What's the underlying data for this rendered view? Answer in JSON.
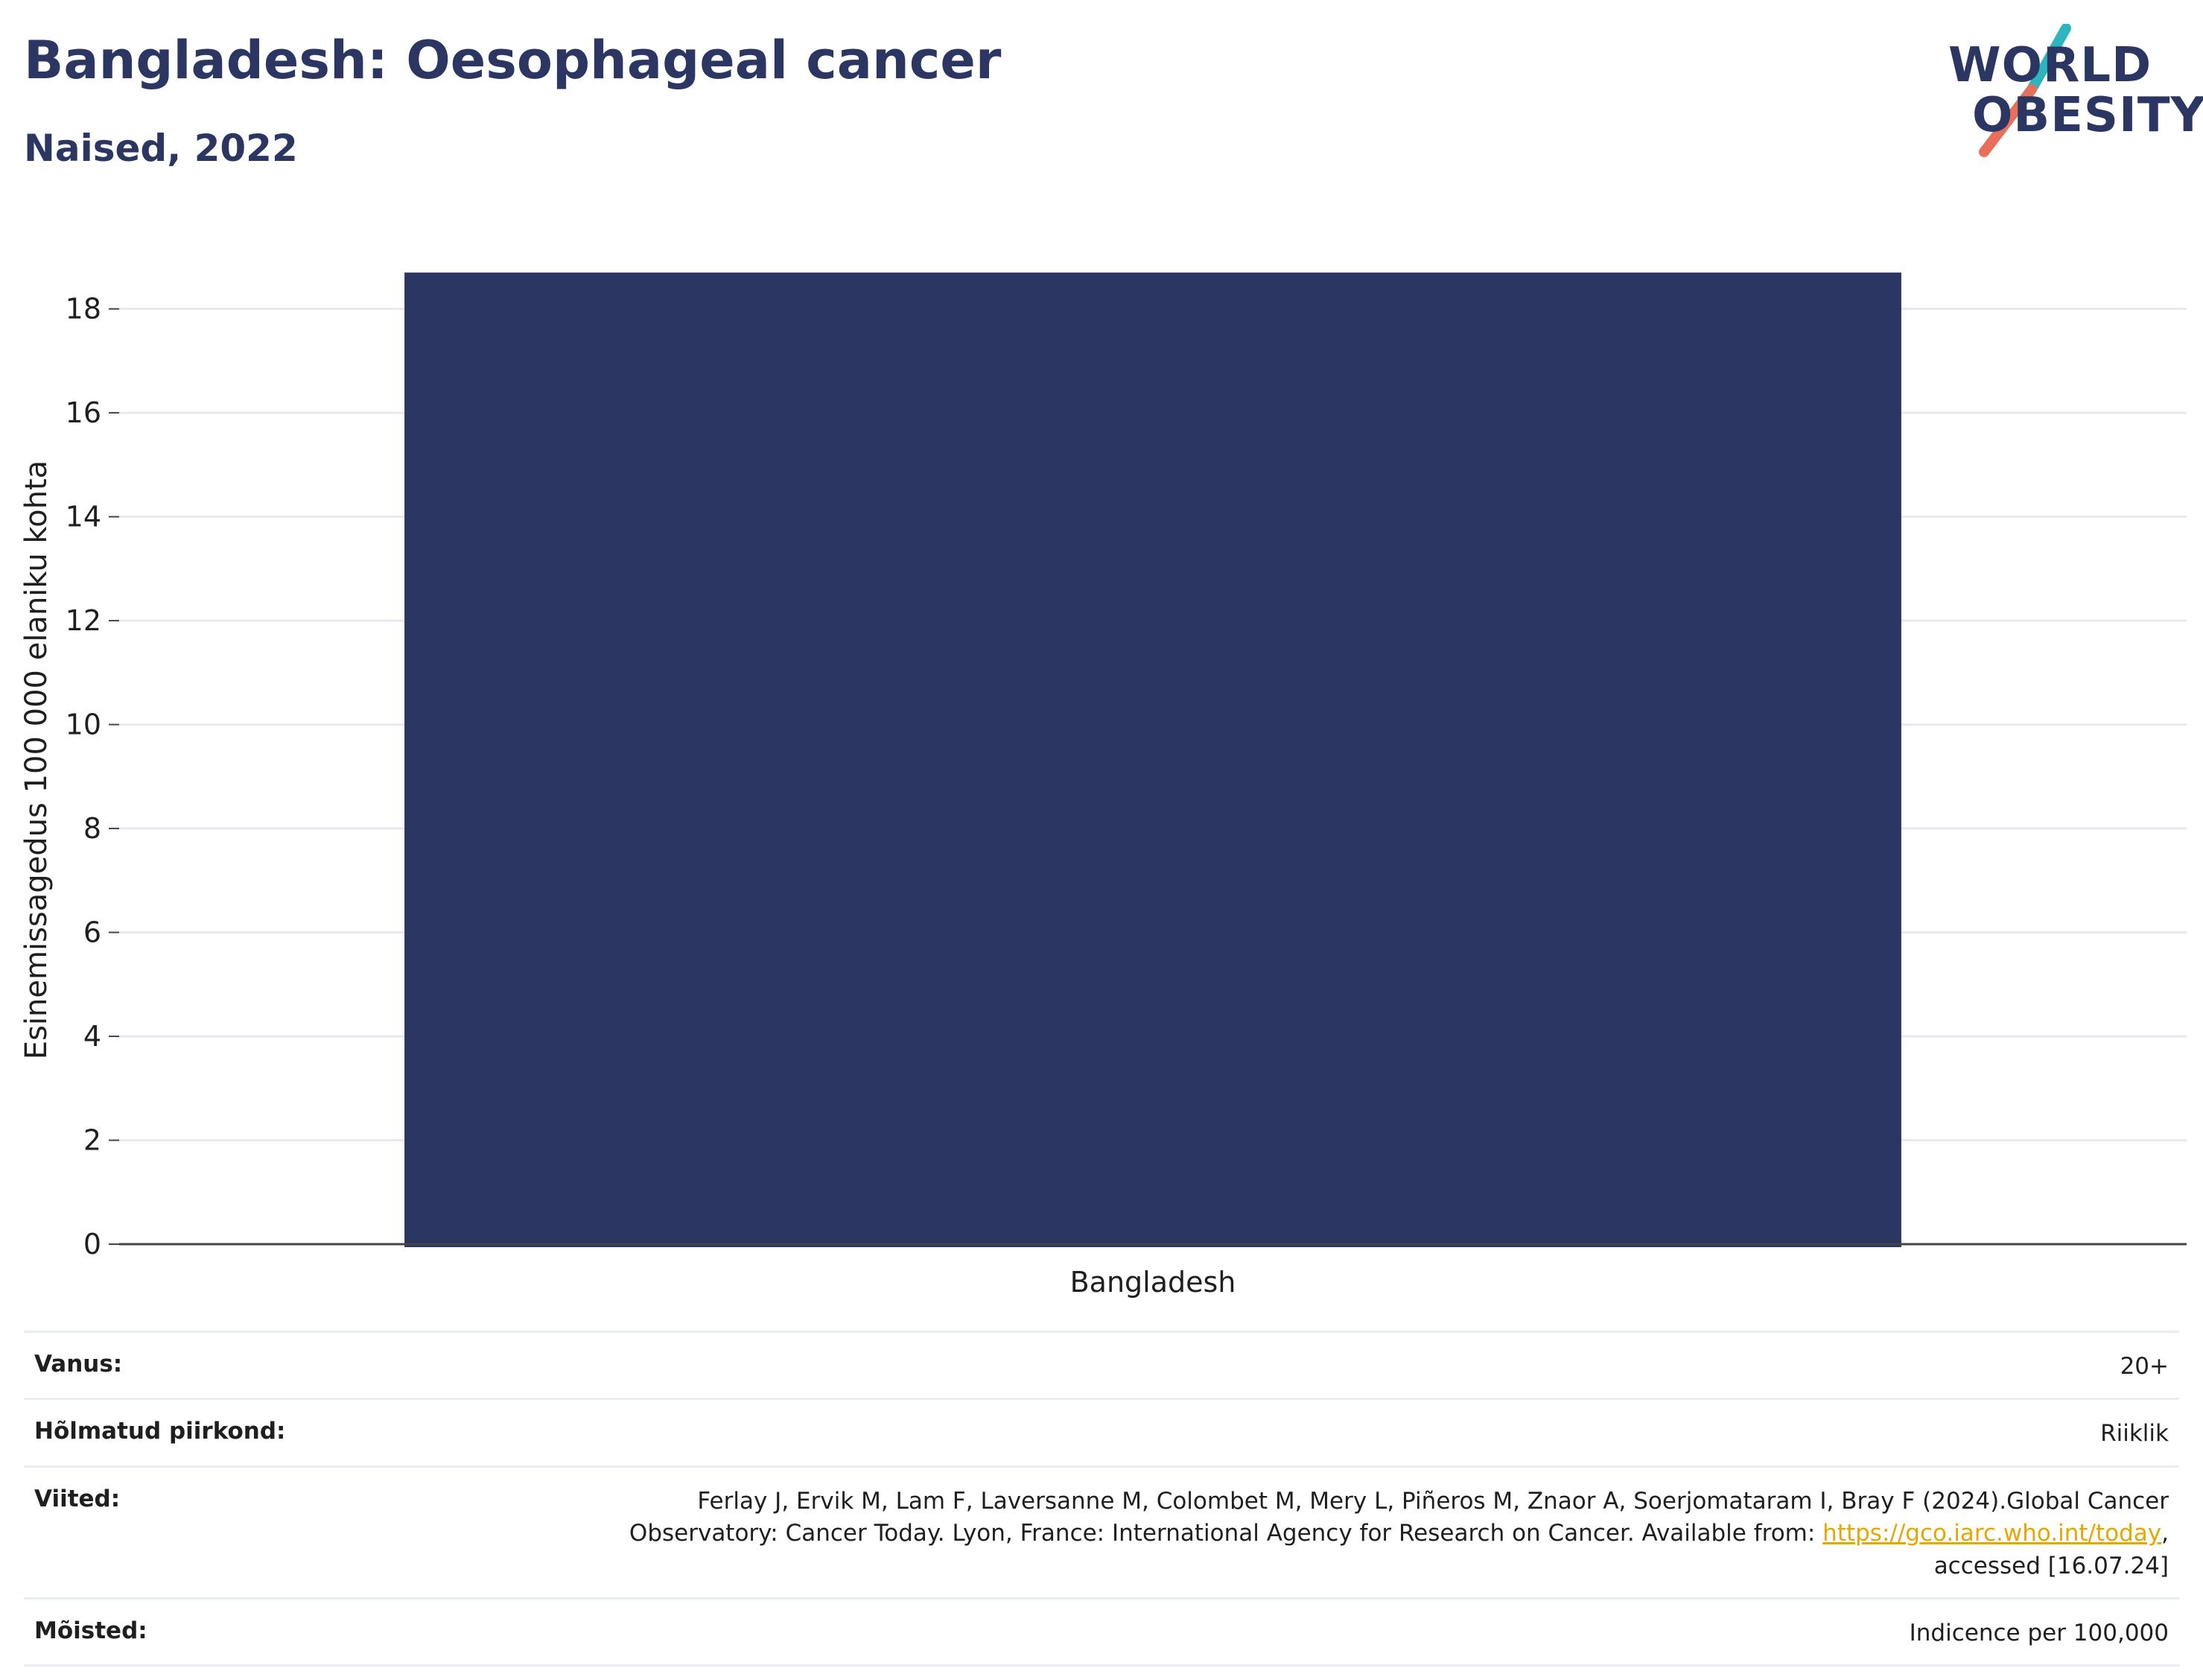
{
  "header": {
    "title": "Bangladesh: Oesophageal cancer",
    "subtitle": "Naised, 2022"
  },
  "logo": {
    "line1": "WORLD",
    "line2": "OBESITY",
    "slash_top_color": "#2db5bd",
    "slash_bottom_color": "#e8705a"
  },
  "colors": {
    "bar": "#2b3762",
    "grid": "#e6e9ef",
    "axis": "#444444"
  },
  "chart_data": {
    "type": "bar",
    "categories": [
      "Bangladesh"
    ],
    "values": [
      18.7
    ],
    "title": "Bangladesh: Oesophageal cancer",
    "subtitle": "Naised, 2022",
    "xlabel": "",
    "ylabel": "Esinemissagedus 100 000 elaniku kohta",
    "ylim": [
      0,
      19.5
    ],
    "yticks": [
      0,
      2,
      4,
      6,
      8,
      10,
      12,
      14,
      16,
      18
    ],
    "grid": true,
    "legend": "none"
  },
  "info": {
    "rows": [
      {
        "label": "Vanus:",
        "value": "20+"
      },
      {
        "label": "Hõlmatud piirkond:",
        "value": "Riiklik"
      },
      {
        "label": "Viited:",
        "value_line1": "Ferlay J, Ervik M, Lam F, Laversanne M, Colombet M, Mery L, Piñeros M, Znaor A, Soerjomataram I, Bray F (2024).Global Cancer",
        "value_line2_prefix": "Observatory: Cancer Today. Lyon, France: International Agency for Research on Cancer. Available from: ",
        "link": "https://gco.iarc.who.int/today",
        "value_line2_suffix": ",",
        "value_line3": "accessed [16.07.24]"
      },
      {
        "label": "Mõisted:",
        "value": "Indicence per 100,000"
      }
    ]
  }
}
